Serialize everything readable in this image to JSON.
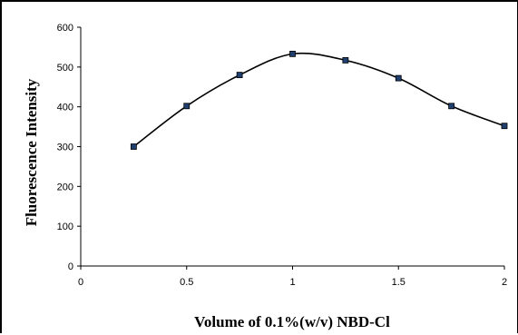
{
  "chart_data": {
    "type": "line",
    "title": "",
    "xlabel": "Volume of  0.1%(w/v) NBD-Cl",
    "ylabel": "Fluorescence Intensity",
    "x": [
      0.25,
      0.5,
      0.75,
      1.0,
      1.25,
      1.5,
      1.75,
      2.0
    ],
    "series": [
      {
        "name": "",
        "values": [
          300,
          402,
          480,
          533,
          517,
          472,
          402,
          352
        ]
      }
    ],
    "xlim": [
      0,
      2
    ],
    "ylim": [
      0,
      600
    ],
    "xticks": [
      "0",
      "0.5",
      "1",
      "1.5",
      "2"
    ],
    "yticks": [
      "0",
      "100",
      "200",
      "300",
      "400",
      "500",
      "600"
    ],
    "grid": false,
    "legend": "none",
    "smooth": true,
    "marker": "square",
    "line_color": "#000000",
    "marker_color": "#1f3f6e"
  }
}
